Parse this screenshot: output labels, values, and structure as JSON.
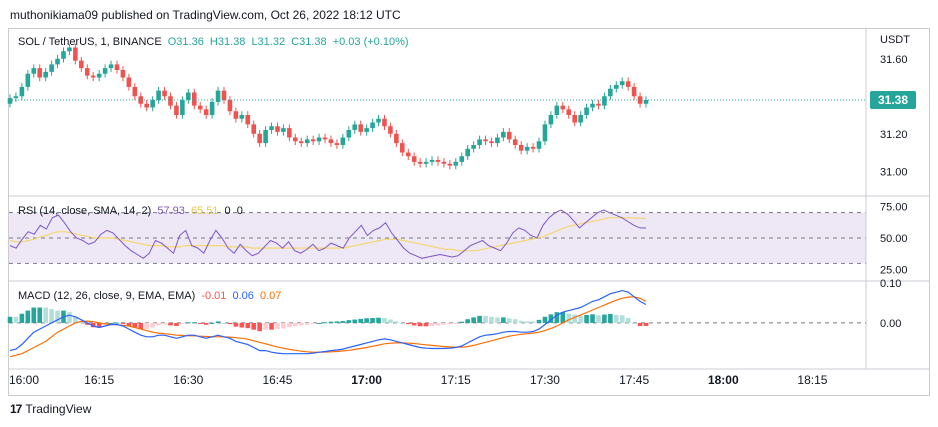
{
  "header": {
    "text": "muthonikiama09 published on TradingView.com, Oct 26, 2022 18:12 UTC"
  },
  "price_legend": {
    "symbol": "SOL / TetherUS, 1, BINANCE",
    "open": "O31.36",
    "high": "H31.38",
    "low": "L31.32",
    "close": "C31.38",
    "change": "+0.03 (+0.10%)"
  },
  "rsi_legend": {
    "label": "RSI (14, close, SMA, 14, 2)",
    "rsi_value": "57.93",
    "sma_value": "65.51",
    "extra1": "0",
    "extra2": "0"
  },
  "macd_legend": {
    "label": "MACD (12, 26, close, 9, EMA, EMA)",
    "hist": "-0.01",
    "macd": "0.06",
    "signal": "0.07"
  },
  "footer": {
    "brand": "TradingView"
  },
  "colors": {
    "up": "#26a69a",
    "down": "#ef5350",
    "rsi_line": "#7e57c2",
    "rsi_sma": "#f5d76e",
    "rsi_band": "#ede7f6",
    "macd_line": "#2962ff",
    "signal_line": "#ff6d00",
    "hist_up_strong": "#26a69a",
    "hist_up_weak": "#b2dfdb",
    "hist_down_strong": "#ff5252",
    "hist_down_weak": "#ffcdd2",
    "price_label_bg": "#26a69a",
    "dotted_line": "#26a69a"
  },
  "chart_data": [
    {
      "type": "candlestick",
      "title": "SOL / TetherUS, 1, BINANCE",
      "y_unit": "USDT",
      "ylim": [
        30.9,
        31.7
      ],
      "y_ticks": [
        "31.60",
        "31.40",
        "31.20",
        "31.00"
      ],
      "current_price": "31.38",
      "x_ticks": [
        "16:00",
        "16:15",
        "16:30",
        "16:45",
        "17:00",
        "17:15",
        "17:30",
        "17:45",
        "18:00",
        "18:15"
      ],
      "x_tick_minutes": [
        0,
        15,
        30,
        45,
        60,
        75,
        90,
        105,
        120,
        135
      ],
      "xlim_minutes": [
        0,
        143
      ],
      "closes": [
        31.39,
        31.4,
        31.45,
        31.52,
        31.55,
        31.5,
        31.53,
        31.57,
        31.6,
        31.64,
        31.66,
        31.59,
        31.55,
        31.51,
        31.5,
        31.52,
        31.55,
        31.57,
        31.54,
        31.5,
        31.45,
        31.4,
        31.36,
        31.34,
        31.38,
        31.43,
        31.4,
        31.35,
        31.3,
        31.38,
        31.42,
        31.35,
        31.33,
        31.3,
        31.37,
        31.43,
        31.38,
        31.32,
        31.28,
        31.3,
        31.25,
        31.2,
        31.15,
        31.22,
        31.24,
        31.21,
        31.23,
        31.18,
        31.16,
        31.15,
        31.17,
        31.16,
        31.18,
        31.17,
        31.15,
        31.14,
        31.18,
        31.22,
        31.25,
        31.21,
        31.23,
        31.26,
        31.28,
        31.24,
        31.2,
        31.15,
        31.1,
        31.08,
        31.05,
        31.04,
        31.05,
        31.06,
        31.05,
        31.04,
        31.03,
        31.05,
        31.08,
        31.12,
        31.14,
        31.17,
        31.16,
        31.15,
        31.18,
        31.21,
        31.17,
        31.14,
        31.11,
        31.13,
        31.12,
        31.16,
        31.25,
        31.3,
        31.35,
        31.33,
        31.3,
        31.26,
        31.3,
        31.34,
        31.36,
        31.35,
        31.4,
        31.44,
        31.46,
        31.48,
        31.45,
        31.4,
        31.36,
        31.38
      ],
      "series": [
        {
          "name": "SOL / TetherUS",
          "last": "31.38"
        }
      ]
    },
    {
      "type": "line",
      "title": "RSI (14, close, SMA, 14, 2)",
      "ylim": [
        20,
        80
      ],
      "y_ticks": [
        "75.00",
        "50.00",
        "25.00"
      ],
      "bands": [
        70,
        50,
        30
      ],
      "series": [
        {
          "name": "RSI",
          "last": "57.93",
          "values": [
            44,
            42,
            49,
            55,
            53,
            60,
            57,
            66,
            68,
            62,
            55,
            50,
            48,
            45,
            47,
            53,
            56,
            54,
            49,
            44,
            40,
            37,
            34,
            38,
            48,
            46,
            42,
            38,
            52,
            56,
            44,
            42,
            38,
            48,
            56,
            50,
            42,
            38,
            45,
            40,
            36,
            38,
            43,
            48,
            46,
            42,
            47,
            40,
            38,
            41,
            45,
            40,
            42,
            46,
            44,
            42,
            50,
            55,
            60,
            52,
            56,
            58,
            62,
            54,
            48,
            42,
            38,
            36,
            34,
            35,
            36,
            37,
            36,
            35,
            36,
            40,
            44,
            46,
            48,
            44,
            42,
            40,
            46,
            54,
            58,
            56,
            52,
            50,
            60,
            66,
            70,
            72,
            69,
            64,
            58,
            62,
            66,
            70,
            72,
            70,
            68,
            66,
            63,
            60,
            58,
            57.93
          ]
        },
        {
          "name": "SMA",
          "last": "65.51",
          "values": [
            48,
            47,
            47,
            48,
            49,
            51,
            52,
            54,
            55,
            55,
            54,
            53,
            52,
            51,
            50,
            50,
            50,
            50,
            49,
            48,
            47,
            46,
            45,
            44,
            44,
            44,
            43,
            43,
            43,
            44,
            44,
            44,
            44,
            44,
            44,
            44,
            43,
            43,
            43,
            43,
            42,
            42,
            42,
            42,
            42,
            42,
            42,
            42,
            42,
            42,
            42,
            42,
            42,
            42,
            42,
            42,
            43,
            44,
            45,
            46,
            47,
            48,
            49,
            49,
            49,
            48,
            47,
            46,
            45,
            44,
            43,
            42,
            41,
            41,
            40,
            40,
            40,
            40,
            41,
            42,
            43,
            44,
            45,
            46,
            47,
            48,
            49,
            50,
            51,
            53,
            55,
            57,
            59,
            60,
            61,
            62,
            63,
            64,
            65,
            66,
            66,
            66,
            66,
            65.8,
            65.6,
            65.51
          ]
        }
      ]
    },
    {
      "type": "bar+line",
      "title": "MACD (12, 26, close, 9, EMA, EMA)",
      "ylim": [
        -0.14,
        0.12
      ],
      "y_ticks": [
        "0.10",
        "0.00"
      ],
      "series": [
        {
          "name": "MACD",
          "last": "0.06",
          "values": [
            -0.09,
            -0.085,
            -0.07,
            -0.05,
            -0.03,
            -0.02,
            -0.01,
            0.0,
            0.01,
            0.02,
            0.025,
            0.02,
            0.01,
            0.0,
            -0.01,
            -0.015,
            -0.01,
            -0.005,
            -0.005,
            -0.01,
            -0.02,
            -0.03,
            -0.04,
            -0.045,
            -0.045,
            -0.04,
            -0.04,
            -0.045,
            -0.05,
            -0.045,
            -0.04,
            -0.04,
            -0.045,
            -0.05,
            -0.045,
            -0.04,
            -0.045,
            -0.05,
            -0.06,
            -0.065,
            -0.07,
            -0.08,
            -0.09,
            -0.09,
            -0.095,
            -0.098,
            -0.1,
            -0.1,
            -0.1,
            -0.1,
            -0.1,
            -0.098,
            -0.095,
            -0.093,
            -0.09,
            -0.088,
            -0.085,
            -0.08,
            -0.075,
            -0.07,
            -0.065,
            -0.06,
            -0.055,
            -0.052,
            -0.055,
            -0.06,
            -0.065,
            -0.07,
            -0.075,
            -0.08,
            -0.082,
            -0.083,
            -0.083,
            -0.083,
            -0.082,
            -0.08,
            -0.075,
            -0.065,
            -0.055,
            -0.045,
            -0.04,
            -0.038,
            -0.035,
            -0.03,
            -0.028,
            -0.028,
            -0.03,
            -0.03,
            -0.028,
            -0.02,
            -0.005,
            0.01,
            0.025,
            0.035,
            0.04,
            0.045,
            0.05,
            0.06,
            0.07,
            0.075,
            0.085,
            0.095,
            0.1,
            0.105,
            0.1,
            0.085,
            0.07,
            0.06
          ]
        },
        {
          "name": "Signal",
          "last": "0.07",
          "values": [
            -0.11,
            -0.105,
            -0.1,
            -0.09,
            -0.08,
            -0.07,
            -0.06,
            -0.045,
            -0.03,
            -0.02,
            -0.01,
            0.0,
            0.005,
            0.006,
            0.004,
            0.0,
            -0.003,
            -0.005,
            -0.006,
            -0.008,
            -0.01,
            -0.015,
            -0.02,
            -0.025,
            -0.03,
            -0.033,
            -0.035,
            -0.037,
            -0.04,
            -0.041,
            -0.042,
            -0.042,
            -0.043,
            -0.044,
            -0.045,
            -0.045,
            -0.045,
            -0.046,
            -0.048,
            -0.05,
            -0.053,
            -0.058,
            -0.063,
            -0.068,
            -0.073,
            -0.078,
            -0.082,
            -0.086,
            -0.089,
            -0.092,
            -0.094,
            -0.095,
            -0.095,
            -0.095,
            -0.094,
            -0.093,
            -0.091,
            -0.089,
            -0.086,
            -0.083,
            -0.08,
            -0.076,
            -0.072,
            -0.068,
            -0.066,
            -0.065,
            -0.065,
            -0.066,
            -0.067,
            -0.069,
            -0.071,
            -0.073,
            -0.075,
            -0.077,
            -0.078,
            -0.079,
            -0.079,
            -0.077,
            -0.073,
            -0.068,
            -0.063,
            -0.058,
            -0.053,
            -0.048,
            -0.043,
            -0.04,
            -0.037,
            -0.035,
            -0.033,
            -0.03,
            -0.025,
            -0.018,
            -0.01,
            0.0,
            0.01,
            0.018,
            0.026,
            0.034,
            0.042,
            0.05,
            0.058,
            0.066,
            0.074,
            0.08,
            0.084,
            0.085,
            0.08,
            0.07
          ]
        }
      ]
    }
  ]
}
